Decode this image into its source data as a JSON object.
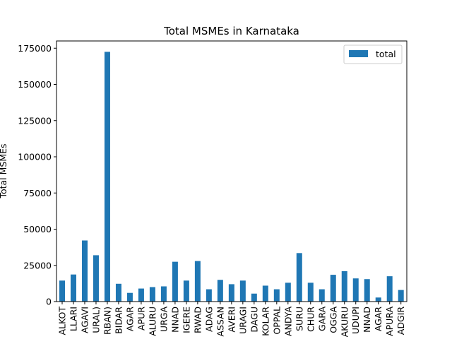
{
  "chart_data": {
    "type": "bar",
    "title": "Total MSMEs in Karnataka",
    "xlabel": "",
    "ylabel": "Total MSMEs",
    "ylim": [
      0,
      180000
    ],
    "yticks": [
      0,
      25000,
      50000,
      75000,
      100000,
      125000,
      150000,
      175000
    ],
    "legend_position": "top-right",
    "grid": false,
    "bar_color": "#1f77b4",
    "categories": [
      "ALKOT",
      "LLARI",
      "AGAVI",
      "URAL)",
      "RBAN)",
      "BIDAR",
      "AGAR",
      "APUR",
      "ALURU",
      "URGA",
      "NNAD",
      "IGERE",
      "RWAD",
      "ADAG",
      "ASSAN",
      "AVERI",
      "URAGI",
      "DAGU",
      "KOLAR",
      "OPPAL",
      "ANDYA",
      "SURU",
      "CHUR",
      "GARA",
      "OGGA",
      "AKURU",
      "UDUPI",
      "NNAD",
      "AGAR",
      "APURA",
      "ADGIR"
    ],
    "series": [
      {
        "name": "total",
        "values": [
          14500,
          18700,
          42200,
          32000,
          172500,
          12300,
          6000,
          9000,
          10000,
          10500,
          27500,
          14500,
          28000,
          8500,
          15000,
          12000,
          14500,
          5500,
          11000,
          8500,
          13000,
          33500,
          13000,
          8500,
          18500,
          21000,
          16000,
          15500,
          2800,
          17500,
          8000
        ]
      }
    ]
  }
}
